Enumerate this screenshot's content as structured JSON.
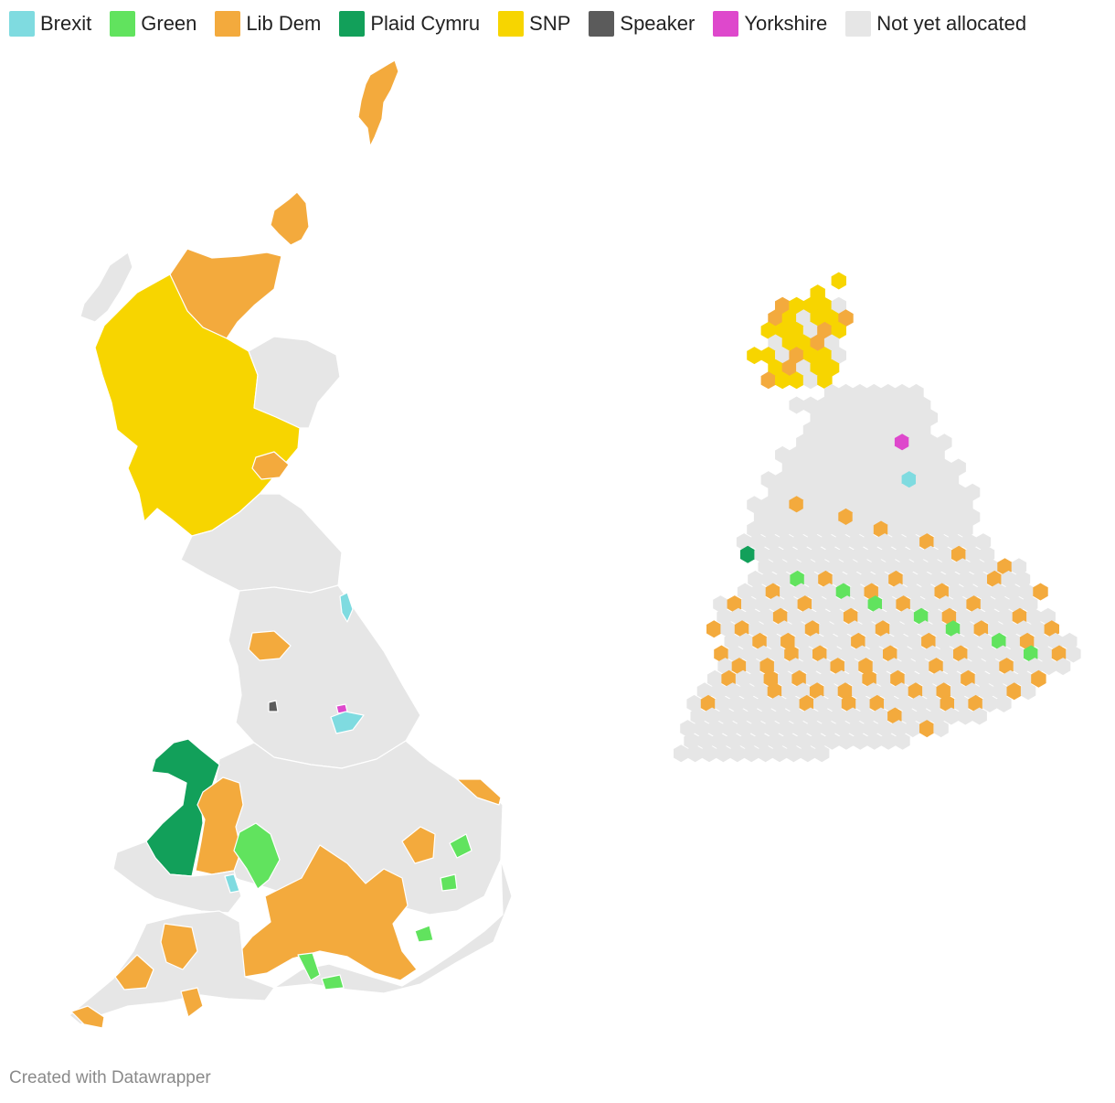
{
  "legend": [
    {
      "label": "Brexit",
      "color": "#7fdbe0"
    },
    {
      "label": "Green",
      "color": "#61e35e"
    },
    {
      "label": "Lib Dem",
      "color": "#f3aa3d"
    },
    {
      "label": "Plaid Cymru",
      "color": "#12a05a"
    },
    {
      "label": "SNP",
      "color": "#f7d500"
    },
    {
      "label": "Speaker",
      "color": "#5b5b5b"
    },
    {
      "label": "Yorkshire",
      "color": "#de48cc"
    },
    {
      "label": "Not yet allocated",
      "color": "#e6e6e6"
    }
  ],
  "footer": "Created with Datawrapper"
}
